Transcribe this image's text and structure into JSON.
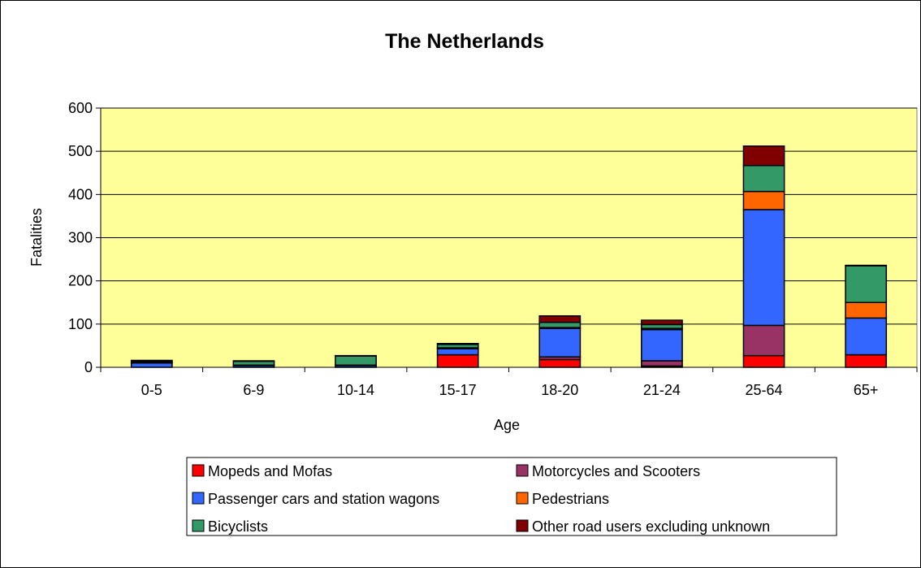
{
  "chart_data": {
    "type": "bar",
    "stacked": true,
    "title": "The Netherlands",
    "xlabel": "Age",
    "ylabel": "Fatalities",
    "ylim": [
      0,
      600
    ],
    "yticks": [
      0,
      100,
      200,
      300,
      400,
      500,
      600
    ],
    "grid": true,
    "plot_background": "#ffff99",
    "legend_position": "bottom",
    "categories": [
      "0-5",
      "6-9",
      "10-14",
      "15-17",
      "18-20",
      "21-24",
      "25-64",
      "65+"
    ],
    "series": [
      {
        "name": "Mopeds and Mofas",
        "color": "#ff0000",
        "values": [
          0,
          0,
          0,
          29,
          18,
          3,
          27,
          29
        ]
      },
      {
        "name": "Motorcycles and Scooters",
        "color": "#993366",
        "values": [
          0,
          0,
          0,
          0,
          6,
          12,
          70,
          0
        ]
      },
      {
        "name": "Passenger cars and station wagons",
        "color": "#3366ff",
        "values": [
          10,
          4,
          4,
          14,
          66,
          72,
          268,
          85
        ]
      },
      {
        "name": "Pedestrians",
        "color": "#ff6600",
        "values": [
          2,
          1,
          1,
          2,
          2,
          3,
          42,
          36
        ]
      },
      {
        "name": "Bicyclists",
        "color": "#339966",
        "values": [
          2,
          9,
          21,
          8,
          12,
          9,
          60,
          85
        ]
      },
      {
        "name": "Other road users excluding unknown",
        "color": "#800000",
        "values": [
          2,
          1,
          1,
          2,
          15,
          10,
          45,
          1
        ]
      }
    ]
  }
}
